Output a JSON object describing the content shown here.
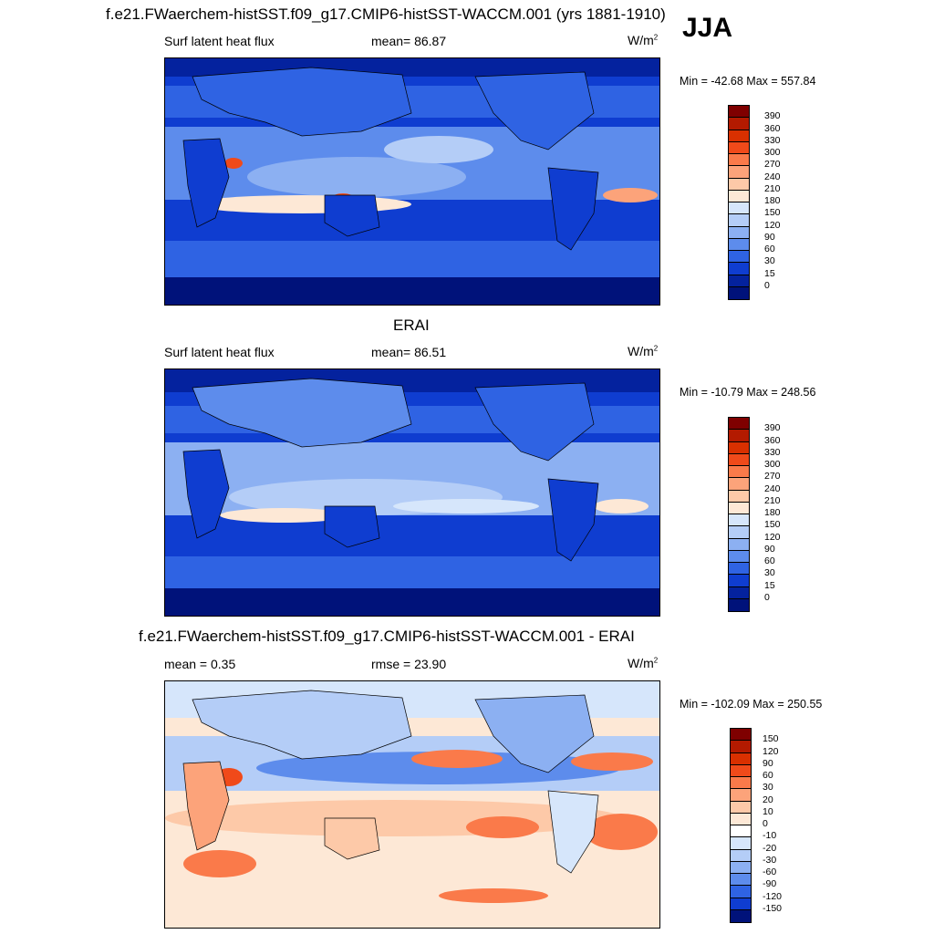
{
  "season": "JJA",
  "panels": [
    {
      "title": "f.e21.FWaerchem-histSST.f09_g17.CMIP6-histSST-WACCM.001 (yrs 1881-1910)",
      "left_label": "Surf latent heat flux",
      "center_label": "mean=  86.87",
      "units": "W/m",
      "units_exp": "2",
      "minmax": "Min = -42.68 Max = 557.84",
      "colorbar": {
        "levels": [
          "390",
          "360",
          "330",
          "300",
          "270",
          "240",
          "210",
          "180",
          "150",
          "120",
          "90",
          "60",
          "30",
          "15",
          "0"
        ],
        "colors": [
          "#7f0000",
          "#b31a00",
          "#d93000",
          "#f04a1a",
          "#fa7a4a",
          "#fca37a",
          "#fdc9a8",
          "#fde8d6",
          "#d6e6fb",
          "#b4cdf7",
          "#8cb0f2",
          "#5d8cec",
          "#2f63e3",
          "#0f3dd0",
          "#04229e",
          "#00127a"
        ]
      }
    },
    {
      "title": "ERAI",
      "left_label": "Surf latent heat flux",
      "center_label": "mean=  86.51",
      "units": "W/m",
      "units_exp": "2",
      "minmax": "Min = -10.79 Max = 248.56",
      "colorbar": {
        "levels": [
          "390",
          "360",
          "330",
          "300",
          "270",
          "240",
          "210",
          "180",
          "150",
          "120",
          "90",
          "60",
          "30",
          "15",
          "0"
        ],
        "colors": [
          "#7f0000",
          "#b31a00",
          "#d93000",
          "#f04a1a",
          "#fa7a4a",
          "#fca37a",
          "#fdc9a8",
          "#fde8d6",
          "#d6e6fb",
          "#b4cdf7",
          "#8cb0f2",
          "#5d8cec",
          "#2f63e3",
          "#0f3dd0",
          "#04229e",
          "#00127a"
        ]
      }
    },
    {
      "title": "f.e21.FWaerchem-histSST.f09_g17.CMIP6-histSST-WACCM.001 - ERAI",
      "left_label": "mean =   0.35",
      "center_label": "rmse =  23.90",
      "units": "W/m",
      "units_exp": "2",
      "minmax": "Min = -102.09 Max = 250.55",
      "colorbar": {
        "levels": [
          "150",
          "120",
          "90",
          "60",
          "30",
          "20",
          "10",
          "0",
          "-10",
          "-20",
          "-30",
          "-60",
          "-90",
          "-120",
          "-150"
        ],
        "colors": [
          "#7f0000",
          "#b31a00",
          "#d93000",
          "#f04a1a",
          "#fa7a4a",
          "#fca37a",
          "#fdc9a8",
          "#fde8d6",
          "#ffffff",
          "#d6e6fb",
          "#b4cdf7",
          "#8cb0f2",
          "#5d8cec",
          "#2f63e3",
          "#0f3dd0",
          "#00127a"
        ]
      }
    }
  ]
}
